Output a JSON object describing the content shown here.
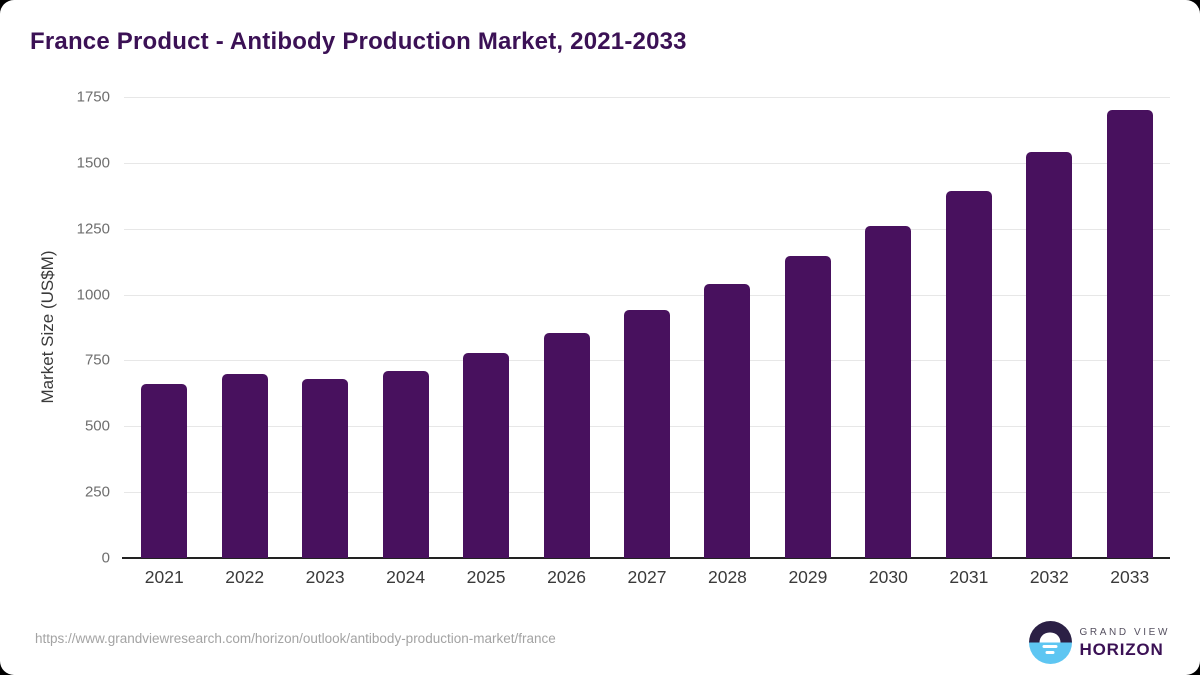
{
  "page": {
    "title": "France Product - Antibody Production Market, 2021-2033",
    "source_url": "https://www.grandviewresearch.com/horizon/outlook/antibody-production-market/france"
  },
  "logo": {
    "line1": "GRAND VIEW",
    "line2": "HORIZON",
    "mark": "sunrise-over-water-icon"
  },
  "colors": {
    "bar": "#48115e",
    "title": "#3b1155",
    "axis": "#222222",
    "grid": "#e7e7e7",
    "tick_label": "#6e6e6e",
    "x_label": "#3a3a3a",
    "url": "#a3a3a3",
    "logo_top": "#2b2045",
    "logo_bottom": "#5ec6f2"
  },
  "chart_data": {
    "type": "bar",
    "title": "France Product - Antibody Production Market, 2021-2033",
    "categories": [
      "2021",
      "2022",
      "2023",
      "2024",
      "2025",
      "2026",
      "2027",
      "2028",
      "2029",
      "2030",
      "2031",
      "2032",
      "2033"
    ],
    "values": [
      660,
      697,
      679,
      710,
      780,
      856,
      943,
      1040,
      1145,
      1262,
      1395,
      1540,
      1700
    ],
    "xlabel": "",
    "ylabel": "Market Size (US$M)",
    "ylim": [
      0,
      1750
    ],
    "ytick_step": 250,
    "grid": true,
    "legend": false,
    "bar_color": "#48115e"
  }
}
